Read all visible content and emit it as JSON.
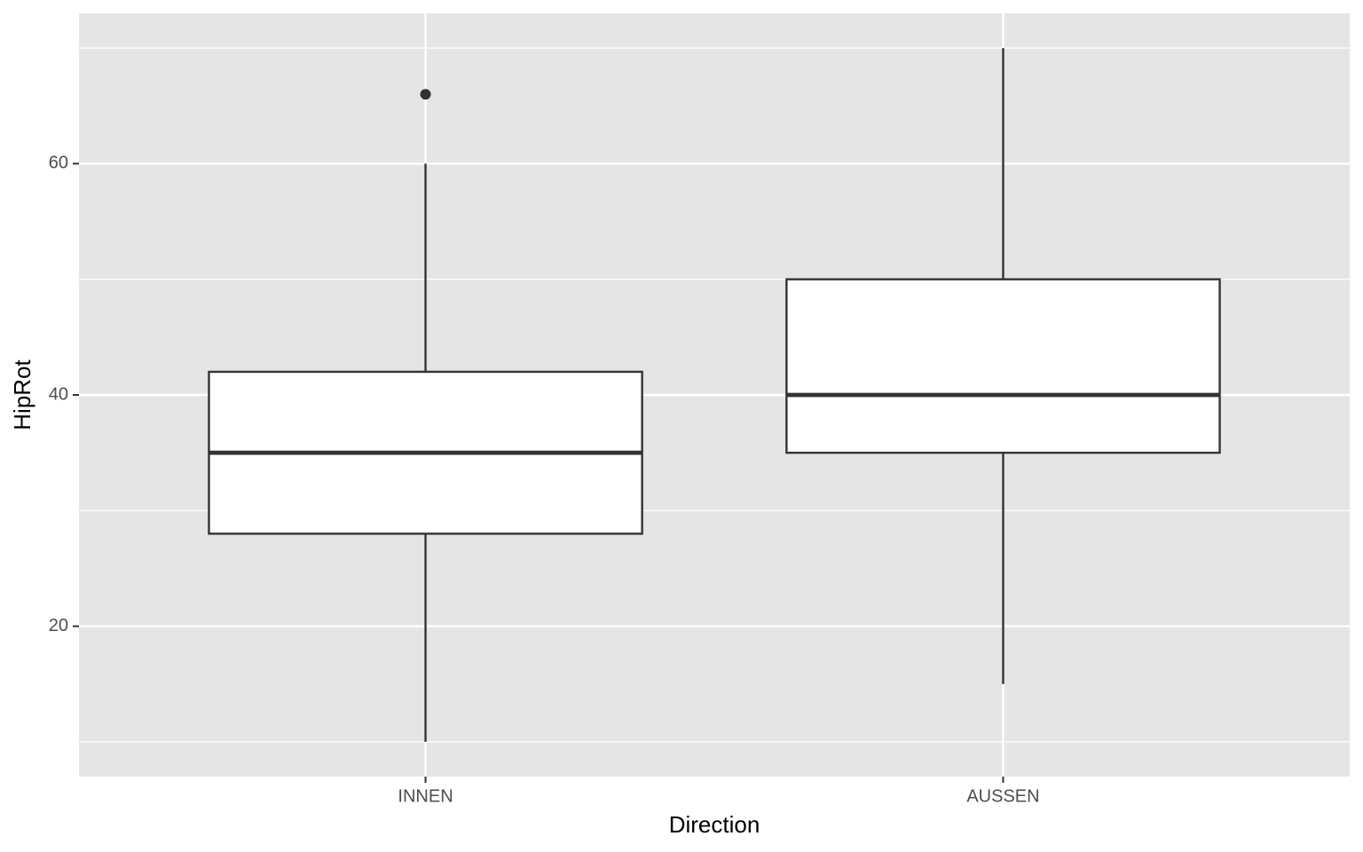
{
  "chart_data": {
    "type": "boxplot",
    "x_label": "Direction",
    "y_label": "HipRot",
    "categories": [
      "INNEN",
      "AUSSEN"
    ],
    "boxes": [
      {
        "min": 10,
        "q1": 28,
        "median": 35,
        "q3": 42,
        "max": 60,
        "outliers": [
          66
        ]
      },
      {
        "min": 15,
        "q1": 35,
        "median": 40,
        "q3": 50,
        "max": 70,
        "outliers": []
      }
    ],
    "ylim": [
      7,
      73
    ],
    "yticks": [
      20,
      40,
      60
    ],
    "y_minor_ticks": [
      10,
      30,
      50,
      70
    ],
    "grid": true,
    "box_fill": "#ffffff",
    "line_color": "#333333",
    "panel_color": "#e5e5e5"
  }
}
